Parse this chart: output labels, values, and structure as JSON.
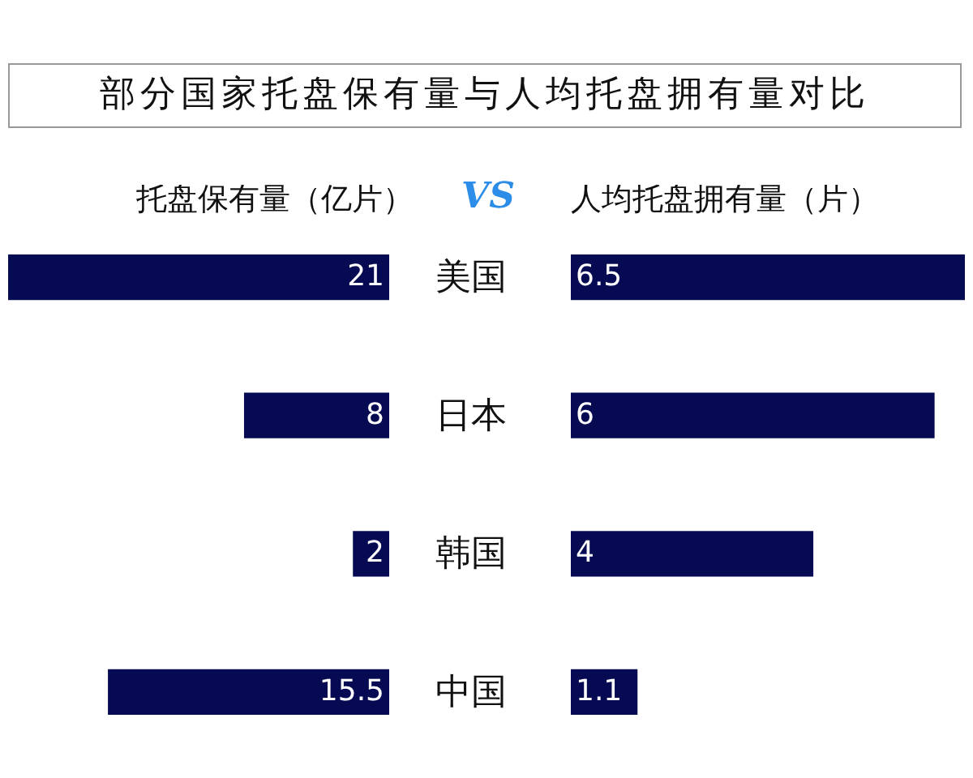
{
  "chart_data": [
    {
      "type": "bar",
      "title": "部分国家托盘保有量与人均托盘拥有量对比",
      "subtitle": "托盘保有量（亿片）",
      "annotations": [
        "VS"
      ],
      "orientation": "horizontal",
      "categories": [
        "美国",
        "日本",
        "韩国",
        "中国"
      ],
      "values": [
        21,
        8,
        2,
        15.5
      ],
      "color": "#050a52",
      "xlim": [
        21,
        0
      ],
      "data_labels": true,
      "tick_labels": "y"
    },
    {
      "type": "bar",
      "subtitle": "人均托盘拥有量（片）",
      "orientation": "horizontal",
      "categories": [
        "美国",
        "日本",
        "韩国",
        "中国"
      ],
      "values": [
        6.5,
        6,
        4,
        1.1
      ],
      "color": "#050a52",
      "xlim": [
        0,
        6.5
      ],
      "data_labels": true,
      "tick_labels": false
    }
  ]
}
